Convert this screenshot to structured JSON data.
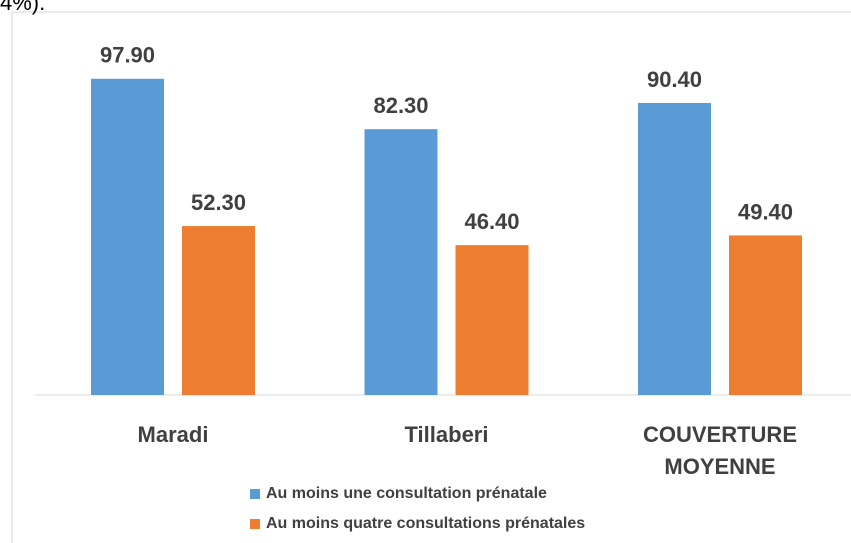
{
  "header_text": "4%).",
  "chart_data": {
    "type": "bar",
    "categories": [
      "Maradi",
      "Tillaberi",
      "COUVERTURE MOYENNE"
    ],
    "series": [
      {
        "name": "Au moins une consultation prénatale",
        "color": "#5b9bd5",
        "values": [
          97.9,
          82.3,
          90.4
        ],
        "value_labels": [
          "97.90",
          "82.30",
          "90.40"
        ]
      },
      {
        "name": "Au moins quatre consultations prénatales",
        "color": "#ed7d31",
        "values": [
          52.3,
          46.4,
          49.4
        ],
        "value_labels": [
          "52.30",
          "46.40",
          "49.40"
        ]
      }
    ]
  }
}
